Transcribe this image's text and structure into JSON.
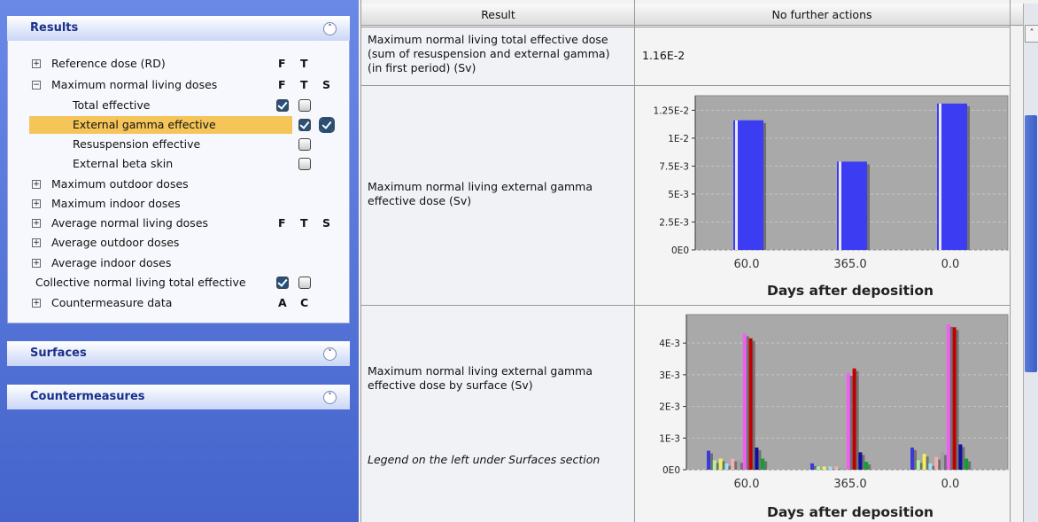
{
  "sidebar": {
    "panels": [
      {
        "title": "Results",
        "items": [
          {
            "label": "Reference dose (RD)",
            "expand": "plus",
            "flags": [
              "F",
              "T"
            ]
          },
          {
            "label": "Maximum normal living doses",
            "expand": "minus",
            "flags": [
              "F",
              "T",
              "S"
            ]
          },
          {
            "label": "Total effective",
            "checks": [
              true,
              false
            ],
            "check_column": 0
          },
          {
            "label": "External gamma effective",
            "selected": true,
            "checks": [
              true,
              true
            ],
            "check_column": 1
          },
          {
            "label": "Resuspension effective",
            "checks": [
              false
            ],
            "check_column": 1
          },
          {
            "label": "External beta skin",
            "checks": [
              false
            ],
            "check_column": 1
          },
          {
            "label": "Maximum outdoor doses",
            "expand": "plus"
          },
          {
            "label": "Maximum indoor doses",
            "expand": "plus"
          },
          {
            "label": "Average normal living doses",
            "expand": "plus",
            "flags": [
              "F",
              "T",
              "S"
            ]
          },
          {
            "label": "Average outdoor doses",
            "expand": "plus"
          },
          {
            "label": "Average indoor doses",
            "expand": "plus"
          },
          {
            "label": "Collective normal living total effective",
            "checks": [
              true,
              false
            ],
            "check_column": 0
          },
          {
            "label": "Countermeasure data",
            "expand": "plus",
            "flags": [
              "A",
              "C"
            ]
          }
        ]
      },
      {
        "title": "Surfaces"
      },
      {
        "title": "Countermeasures"
      }
    ]
  },
  "table": {
    "headers": [
      "Result",
      "No further actions"
    ],
    "rows": [
      {
        "label": "Maximum normal living total effective dose (sum of resuspension and external gamma) (in first period) (Sv)",
        "value": "1.16E-2"
      },
      {
        "label": "Maximum normal living external gamma effective dose (Sv)",
        "chart": {
          "type": "bar",
          "categories": [
            "60.0",
            "365.0",
            "0.0"
          ],
          "values": [
            0.0116,
            0.0079,
            0.0131
          ],
          "color": "#3c3cf2",
          "ylim": [
            0,
            0.0138
          ],
          "yticks": [
            {
              "value": 0,
              "label": "0E0"
            },
            {
              "value": 0.0025,
              "label": "2.5E-3"
            },
            {
              "value": 0.005,
              "label": "5E-3"
            },
            {
              "value": 0.0075,
              "label": "7.5E-3"
            },
            {
              "value": 0.01,
              "label": "1E-2"
            },
            {
              "value": 0.0125,
              "label": "1.25E-2"
            }
          ],
          "x_label": "Days after deposition",
          "grid": true
        }
      },
      {
        "label": "Maximum normal living external gamma effective dose by surface (Sv)",
        "note": "Legend on the left under Surfaces section",
        "chart": {
          "type": "grouped_bar",
          "categories": [
            "60.0",
            "365.0",
            "0.0"
          ],
          "series": [
            {
              "color": "#3a3ad8",
              "values": [
                0.0006,
                0.0002,
                0.0007
              ]
            },
            {
              "color": "#b0f0a0",
              "values": [
                0.0003,
                0.0001,
                0.0003
              ]
            },
            {
              "color": "#f0f060",
              "values": [
                0.00035,
                0.0001,
                0.0005
              ]
            },
            {
              "color": "#a0e0f0",
              "values": [
                0.0002,
                0.0001,
                0.0002
              ]
            },
            {
              "color": "#f0b0b0",
              "values": [
                0.00035,
                0.0001,
                0.0004
              ]
            },
            {
              "color": "#a0a0a0",
              "values": [
                0.0003,
                5e-05,
                0.00055
              ]
            },
            {
              "color": "#f060f0",
              "values": [
                0.0043,
                0.00305,
                0.0046
              ]
            },
            {
              "color": "#c00000",
              "values": [
                0.00415,
                0.0032,
                0.0045
              ]
            },
            {
              "color": "#1010a0",
              "values": [
                0.0007,
                0.00055,
                0.0008
              ]
            },
            {
              "color": "#10a030",
              "values": [
                0.00035,
                0.00025,
                0.00035
              ]
            }
          ],
          "ylim": [
            0,
            0.0049
          ],
          "yticks": [
            {
              "value": 0,
              "label": "0E0"
            },
            {
              "value": 0.001,
              "label": "1E-3"
            },
            {
              "value": 0.002,
              "label": "2E-3"
            },
            {
              "value": 0.003,
              "label": "3E-3"
            },
            {
              "value": 0.004,
              "label": "4E-3"
            }
          ],
          "x_label": "Days after deposition",
          "grid": true
        }
      }
    ]
  }
}
